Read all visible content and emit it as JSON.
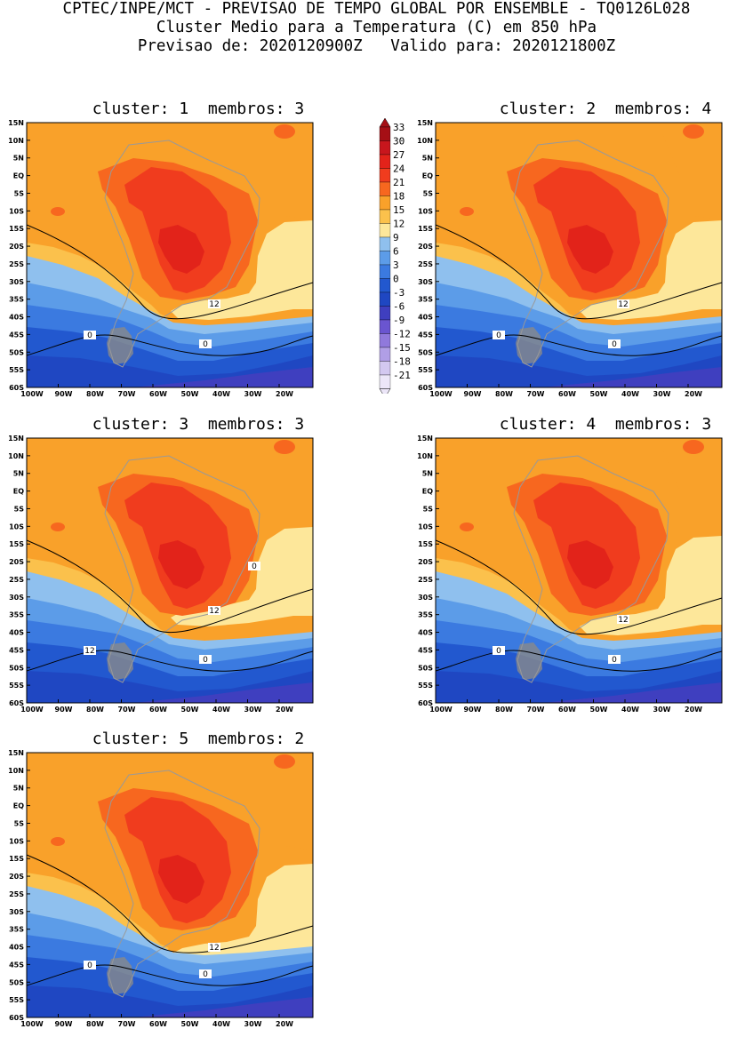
{
  "header": {
    "line1": "CPTEC/INPE/MCT - PREVISAO DE TEMPO GLOBAL POR ENSEMBLE - TQ0126L028",
    "line2": "Cluster Medio para a Temperatura (C) em 850 hPa",
    "line3": "Previsao de: 2020120900Z   Valido para: 2020121800Z"
  },
  "panels": [
    {
      "title": "cluster: 1  membros: 3",
      "contour_labels": [
        "12",
        "0",
        "0"
      ]
    },
    {
      "title": "cluster: 2  membros: 4",
      "contour_labels": [
        "12",
        "0",
        "0"
      ]
    },
    {
      "title": "cluster: 3  membros: 3",
      "contour_labels": [
        "12",
        "12",
        "0",
        "0"
      ]
    },
    {
      "title": "cluster: 4  membros: 3",
      "contour_labels": [
        "12",
        "0",
        "0"
      ]
    },
    {
      "title": "cluster: 5  membros: 2",
      "contour_labels": [
        "12",
        "0",
        "0"
      ]
    }
  ],
  "axes": {
    "lat_labels": [
      "15N",
      "10N",
      "5N",
      "EQ",
      "5S",
      "10S",
      "15S",
      "20S",
      "25S",
      "30S",
      "35S",
      "40S",
      "45S",
      "50S",
      "55S",
      "60S"
    ],
    "lon_labels": [
      "100W",
      "90W",
      "80W",
      "70W",
      "60W",
      "50W",
      "40W",
      "30W",
      "20W"
    ]
  },
  "colorbar": {
    "labels": [
      "33",
      "30",
      "27",
      "24",
      "21",
      "18",
      "15",
      "12",
      "9",
      "6",
      "3",
      "0",
      "-3",
      "-6",
      "-9",
      "-12",
      "-15",
      "-18",
      "-21"
    ],
    "colors": [
      "#a50f15",
      "#c8161d",
      "#e2231a",
      "#f03c1e",
      "#f7671f",
      "#f9a12a",
      "#fbc14c",
      "#fde79a",
      "#8fc0ee",
      "#5c9ce8",
      "#3b7ae0",
      "#2258cf",
      "#1f47c2",
      "#3f3fbf",
      "#6a55d0",
      "#9079dc",
      "#b09ee6",
      "#d3c8f0",
      "#ece6f8"
    ]
  },
  "colors": {
    "orange": "#f9a12a",
    "light_orange": "#fbc14c",
    "yellow": "#fde79a",
    "light_red": "#f7671f",
    "red": "#f03c1e",
    "dark_red": "#e2231a",
    "light_blue": "#8fc0ee",
    "mid_blue": "#5c9ce8",
    "blue": "#3b7ae0",
    "deep_blue": "#2258cf",
    "navy": "#1f47c2",
    "purple": "#3f3fbf",
    "land_gray": "#8a8a8a"
  }
}
